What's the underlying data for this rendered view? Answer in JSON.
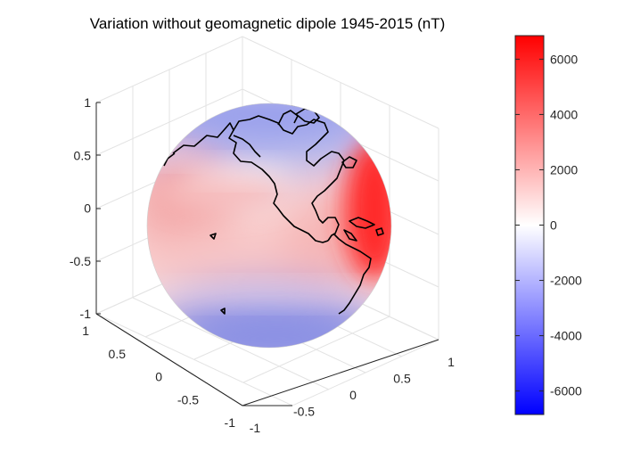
{
  "chart_data": {
    "type": "heatmap",
    "subtype": "3d-sphere-surface",
    "title": "Variation without geomagnetic dipole 1945-2015  (nT)",
    "colormap": "blue-white-red",
    "colors": {
      "low": "#0000ff",
      "mid": "#ffffff",
      "high": "#ff0000"
    },
    "clim": [
      -6850,
      6850
    ],
    "colorbar_ticks": [
      "6000",
      "4000",
      "2000",
      "0",
      "-2000",
      "-4000",
      "-6000"
    ],
    "colorbar_tick_values": [
      6000,
      4000,
      2000,
      0,
      -2000,
      -4000,
      -6000
    ],
    "x_ticks": [
      "-1",
      "-0.5",
      "0",
      "0.5",
      "1"
    ],
    "y_ticks": [
      "1",
      "0.5",
      "0",
      "-0.5",
      "-1"
    ],
    "z_ticks": [
      "1",
      "0.5",
      "0",
      "-0.5",
      "-1"
    ],
    "xlim": [
      -1,
      1
    ],
    "ylim": [
      -1,
      1
    ],
    "zlim": [
      -1,
      1
    ],
    "grid": true,
    "surface_features": [
      {
        "region": "east edge (Atlantic near Caribbean)",
        "value": 6800
      },
      {
        "region": "north-central Pacific band",
        "value": 2000
      },
      {
        "region": "north cap (Arctic / Canada)",
        "value": -2500
      },
      {
        "region": "south-central Pacific",
        "value": -3000
      },
      {
        "region": "central Pacific / Central America",
        "value": 1000
      }
    ]
  }
}
